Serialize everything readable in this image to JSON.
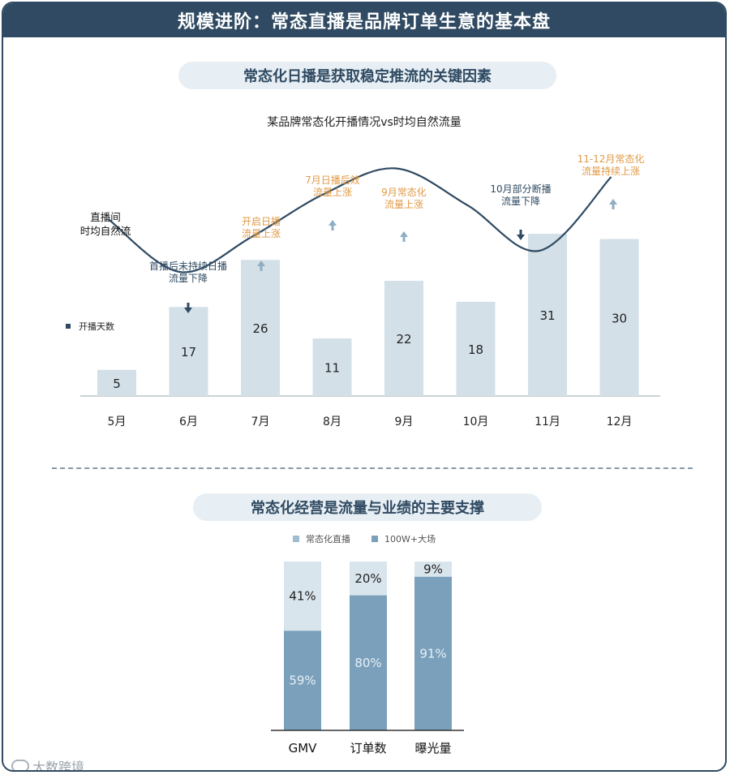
{
  "header": {
    "title": "规模进阶：常态直播是品牌订单生意的基本盘"
  },
  "section1": {
    "pill": "常态化日播是获取稳定推流的关键因素"
  },
  "section2": {
    "pill": "常态化经营是流量与业绩的主要支撑"
  },
  "watermark": {
    "text": "大数跨境"
  },
  "colors": {
    "header_bg": "#2f4a62",
    "bar_light": "#d3e0e8",
    "curve": "#2f4a62",
    "annotation_orange": "#e09a45",
    "annotation_dark": "#2f4a62",
    "stack_light": "#d9e5ec",
    "stack_dark": "#7aa0bc"
  },
  "chart_data": [
    {
      "type": "bar",
      "title": "某品牌常态化开播情况vs时均自然流量",
      "categories": [
        "5月",
        "6月",
        "7月",
        "8月",
        "9月",
        "10月",
        "11月",
        "12月"
      ],
      "series": [
        {
          "name": "开播天数",
          "values": [
            5,
            17,
            26,
            11,
            22,
            18,
            31,
            30
          ]
        }
      ],
      "ylim": [
        0,
        35
      ],
      "curve": {
        "label_lines": [
          "直播间",
          "时均自然流"
        ],
        "relative_level": [
          0.62,
          0.25,
          0.5,
          0.8,
          0.98,
          0.72,
          0.4,
          0.92
        ]
      },
      "annotations": [
        {
          "lines": [
            "首播后未持续日播",
            "流量下降"
          ],
          "direction": "down",
          "tone": "dark"
        },
        {
          "lines": [
            "开启日播",
            "流量上涨"
          ],
          "direction": "up",
          "tone": "orange"
        },
        {
          "lines": [
            "7月日播后效",
            "流量上涨"
          ],
          "direction": "up",
          "tone": "orange"
        },
        {
          "lines": [
            "9月常态化",
            "流量上涨"
          ],
          "direction": "up",
          "tone": "orange"
        },
        {
          "lines": [
            "10月部分断播",
            "流量下降"
          ],
          "direction": "down",
          "tone": "dark"
        },
        {
          "lines": [
            "11-12月常态化",
            "流量持续上涨"
          ],
          "direction": "up",
          "tone": "orange"
        }
      ],
      "legend": "left"
    },
    {
      "type": "bar",
      "stacked": true,
      "categories": [
        "GMV",
        "订单数",
        "曝光量"
      ],
      "series": [
        {
          "name": "常态化直播",
          "values": [
            41,
            20,
            9
          ],
          "labels": [
            "41%",
            "20%",
            "9%"
          ]
        },
        {
          "name": "100W+大场",
          "values": [
            59,
            80,
            91
          ],
          "labels": [
            "59%",
            "80%",
            "91%"
          ]
        }
      ],
      "ylim": [
        0,
        100
      ],
      "legend": "top"
    }
  ]
}
